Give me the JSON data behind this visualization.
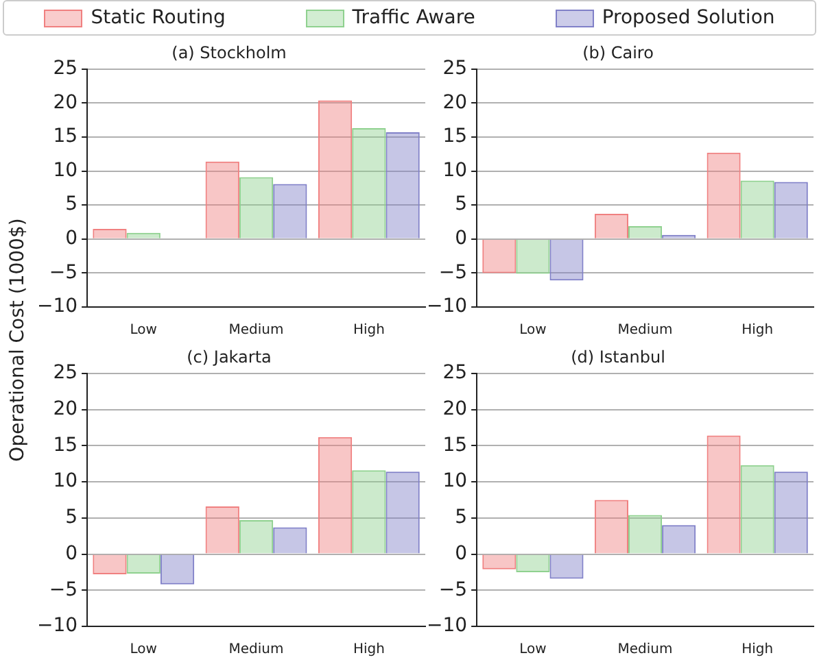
{
  "chart_data": [
    {
      "type": "bar",
      "title": "(a) Stockholm",
      "ylabel": "Operational Cost (1000$)",
      "categories": [
        "Low",
        "Medium",
        "High"
      ],
      "legend": "top",
      "grid": "y",
      "ylim": [
        -10,
        25
      ],
      "yticks": [
        -10,
        -5,
        0,
        5,
        10,
        15,
        20,
        25
      ],
      "series": [
        {
          "name": "Static Routing",
          "color": "#f08080",
          "values": [
            1.5,
            11.4,
            20.4
          ]
        },
        {
          "name": "Traffic Aware",
          "color": "#8fd18f",
          "values": [
            0.9,
            9.1,
            16.3
          ]
        },
        {
          "name": "Proposed Solution",
          "color": "#8080c8",
          "values": [
            -0.1,
            8.1,
            15.7
          ]
        }
      ]
    },
    {
      "type": "bar",
      "title": "(b) Cairo",
      "categories": [
        "Low",
        "Medium",
        "High"
      ],
      "grid": "y",
      "ylim": [
        -10,
        25
      ],
      "yticks": [
        -10,
        -5,
        0,
        5,
        10,
        15,
        20,
        25
      ],
      "series": [
        {
          "color": "#f08080",
          "values": [
            -5,
            3.7,
            12.7
          ]
        },
        {
          "color": "#8fd18f",
          "values": [
            -5.1,
            1.9,
            8.6
          ]
        },
        {
          "color": "#8080c8",
          "values": [
            -6.1,
            0.6,
            8.4
          ]
        }
      ]
    },
    {
      "type": "bar",
      "title": "(c) Jakarta",
      "categories": [
        "Low",
        "Medium",
        "High"
      ],
      "grid": "y",
      "ylim": [
        -10,
        25
      ],
      "yticks": [
        -10,
        -5,
        0,
        5,
        10,
        15,
        20,
        25
      ],
      "series": [
        {
          "color": "#f08080",
          "values": [
            -2.8,
            6.6,
            16.2
          ]
        },
        {
          "color": "#8fd18f",
          "values": [
            -2.7,
            4.7,
            11.6
          ]
        },
        {
          "color": "#8080c8",
          "values": [
            -4.2,
            3.7,
            11.4
          ]
        }
      ]
    },
    {
      "type": "bar",
      "title": "(d) Istanbul",
      "categories": [
        "Low",
        "Medium",
        "High"
      ],
      "grid": "y",
      "ylim": [
        -10,
        25
      ],
      "yticks": [
        -10,
        -5,
        0,
        5,
        10,
        15,
        20,
        25
      ],
      "series": [
        {
          "color": "#f08080",
          "values": [
            -2.1,
            7.5,
            16.4
          ]
        },
        {
          "color": "#8fd18f",
          "values": [
            -2.5,
            5.4,
            12.3
          ]
        },
        {
          "color": "#8080c8",
          "values": [
            -3.4,
            4.0,
            11.4
          ]
        }
      ]
    }
  ]
}
